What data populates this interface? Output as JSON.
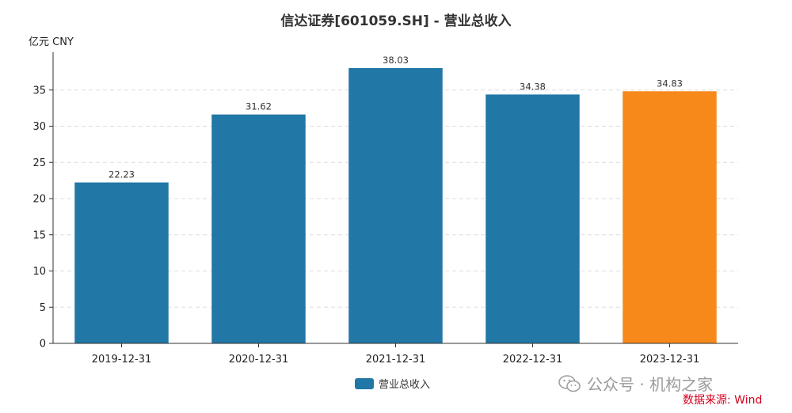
{
  "title": "信达证券[601059.SH] - 营业总收入",
  "unit_label": "亿元  CNY",
  "chart_data": {
    "type": "bar",
    "categories": [
      "2019-12-31",
      "2020-12-31",
      "2021-12-31",
      "2022-12-31",
      "2023-12-31"
    ],
    "series": [
      {
        "name": "营业总收入",
        "values": [
          22.23,
          31.62,
          38.03,
          34.38,
          34.83
        ]
      }
    ],
    "value_labels": [
      "22.23",
      "31.62",
      "38.03",
      "34.38",
      "34.83"
    ],
    "ylim": [
      0,
      40
    ],
    "yticks": [
      0,
      5,
      10,
      15,
      20,
      25,
      30,
      35
    ],
    "grid": true,
    "legend": "bottom",
    "colors": {
      "default": "#2177a5",
      "highlight": "#f7891b"
    },
    "highlight_index": 4
  },
  "watermark": {
    "icon": "wechat-icon",
    "text": "公众号 · 机构之家"
  },
  "source": "数据来源: Wind"
}
